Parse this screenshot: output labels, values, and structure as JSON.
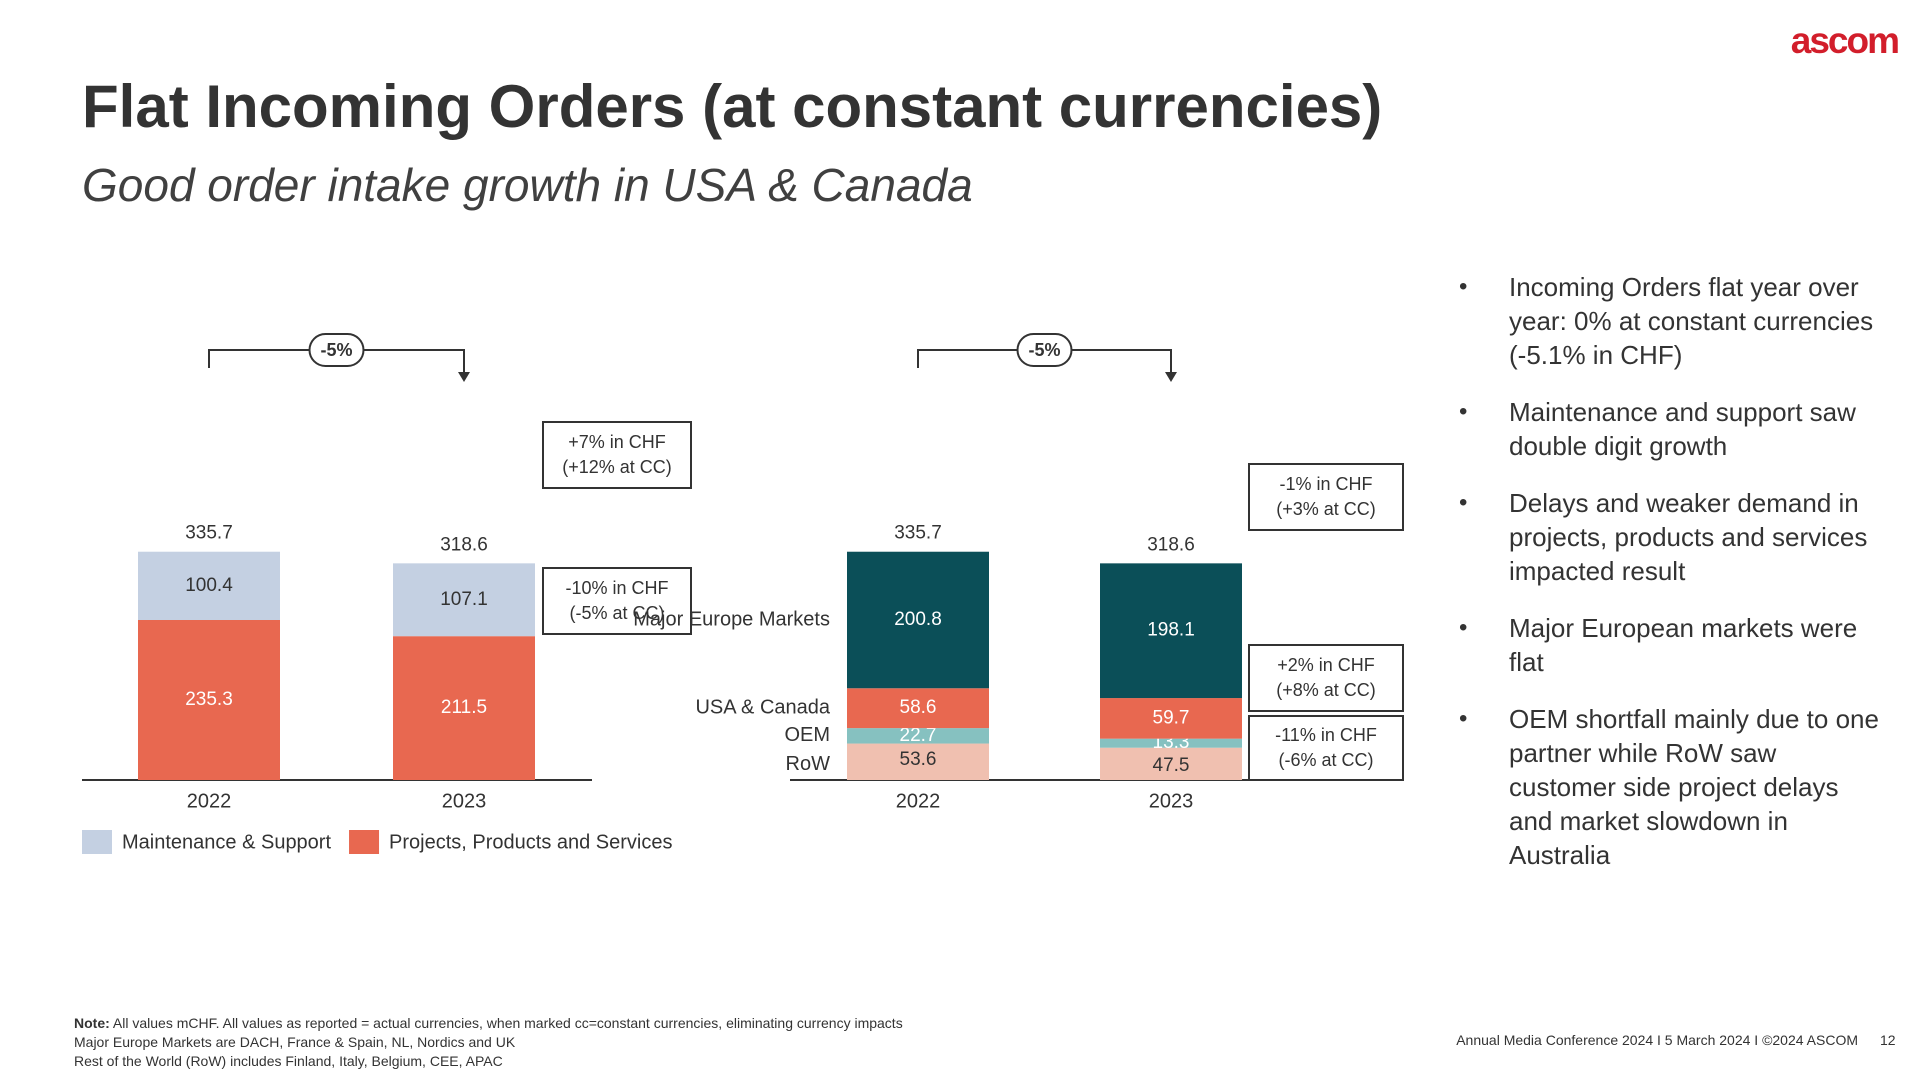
{
  "logo": "ascom",
  "title": "Flat Incoming Orders (at constant currencies)",
  "subtitle": "Good order intake growth in USA & Canada",
  "colors": {
    "maintenance": "#c4d0e2",
    "projects": "#e86850",
    "major_europe": "#0b4f58",
    "usa_canada": "#e86850",
    "oem": "#86c1c0",
    "row": "#f0c0b0",
    "text": "#333333",
    "brand": "#d21e2b"
  },
  "chart_data": [
    {
      "type": "bar",
      "stacked": true,
      "categories": [
        "2022",
        "2023"
      ],
      "totals": [
        "335.7",
        "318.6"
      ],
      "change_label": "-5%",
      "series": [
        {
          "name": "Projects, Products and Services",
          "values": [
            235.3,
            211.5
          ],
          "labels": [
            "235.3",
            "211.5"
          ],
          "color_key": "projects",
          "label_color": "#ffffff"
        },
        {
          "name": "Maintenance & Support",
          "values": [
            100.4,
            107.1
          ],
          "labels": [
            "100.4",
            "107.1"
          ],
          "color_key": "maintenance",
          "label_color": "#333333"
        }
      ],
      "callouts": [
        {
          "series": "Maintenance & Support",
          "lines": [
            "+7% in CHF",
            "(+12% at CC)"
          ]
        },
        {
          "series": "Projects, Products and Services",
          "lines": [
            "-10% in CHF",
            "(-5% at CC)"
          ]
        }
      ],
      "legend": [
        "Maintenance & Support",
        "Projects, Products and Services"
      ],
      "legend_position": "bottom"
    },
    {
      "type": "bar",
      "stacked": true,
      "categories": [
        "2022",
        "2023"
      ],
      "totals": [
        "335.7",
        "318.6"
      ],
      "change_label": "-5%",
      "series": [
        {
          "name": "RoW",
          "values": [
            53.6,
            47.5
          ],
          "labels": [
            "53.6",
            "47.5"
          ],
          "color_key": "row",
          "label_color": "#333333"
        },
        {
          "name": "OEM",
          "values": [
            22.7,
            13.3
          ],
          "labels": [
            "22.7",
            "13.3"
          ],
          "color_key": "oem",
          "label_color": "#ffffff"
        },
        {
          "name": "USA & Canada",
          "values": [
            58.6,
            59.7
          ],
          "labels": [
            "58.6",
            "59.7"
          ],
          "color_key": "usa_canada",
          "label_color": "#ffffff"
        },
        {
          "name": "Major Europe Markets",
          "values": [
            200.8,
            198.1
          ],
          "labels": [
            "200.8",
            "198.1"
          ],
          "color_key": "major_europe",
          "label_color": "#ffffff"
        }
      ],
      "callouts": [
        {
          "series": "Major Europe Markets",
          "lines": [
            "-1% in CHF",
            "(+3% at CC)"
          ]
        },
        {
          "series": "USA & Canada",
          "lines": [
            "+2% in CHF",
            "(+8% at CC)"
          ]
        },
        {
          "series": "RoW",
          "lines": [
            "-11% in CHF",
            "(-6% at CC)"
          ]
        }
      ],
      "legend_position": "left"
    }
  ],
  "bullets": [
    "Incoming Orders flat year over year: 0% at constant currencies (-5.1% in CHF)",
    "Maintenance and support saw double digit growth",
    "Delays and weaker demand in projects, products and services impacted result",
    "Major European markets were flat",
    "OEM shortfall mainly due to one partner while RoW saw customer side project delays and market slowdown in Australia"
  ],
  "notes": {
    "label": "Note:",
    "line1": "All values mCHF. All values as reported = actual currencies, when marked cc=constant currencies, eliminating currency impacts",
    "line2": "Major Europe Markets are DACH, France & Spain, NL, Nordics and UK",
    "line3": "Rest of the World (RoW) includes Finland, Italy, Belgium, CEE, APAC"
  },
  "footer": "Annual Media Conference 2024 I 5 March 2024 I ©2024 ASCOM",
  "page_number": "12"
}
